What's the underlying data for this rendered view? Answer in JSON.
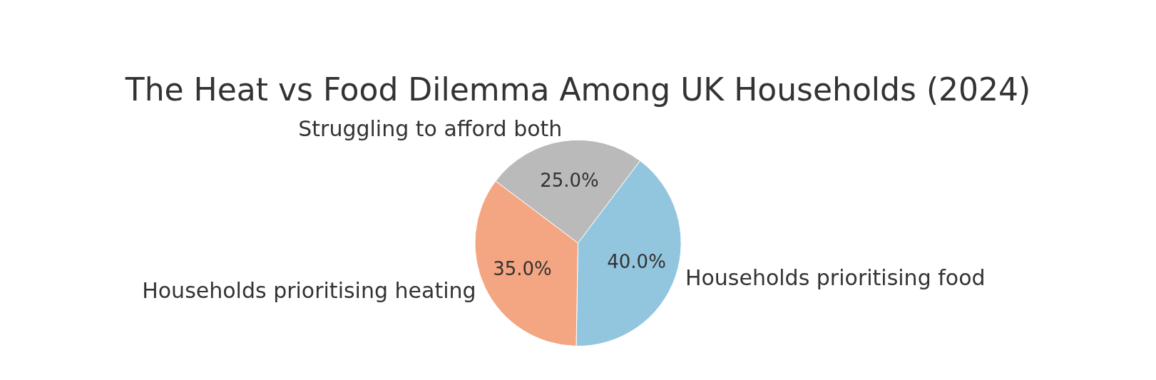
{
  "chart_data": {
    "type": "pie",
    "title": "The Heat vs Food Dilemma Among UK Households (2024)",
    "categories": [
      "Households prioritising food",
      "Households prioritising heating",
      "Struggling to afford both"
    ],
    "values": [
      40,
      35,
      25
    ],
    "colors": [
      "#92c5de",
      "#f4a582",
      "#bababa"
    ],
    "value_labels": [
      "40.0%",
      "35.0%",
      "25.0%"
    ],
    "legend": false
  }
}
